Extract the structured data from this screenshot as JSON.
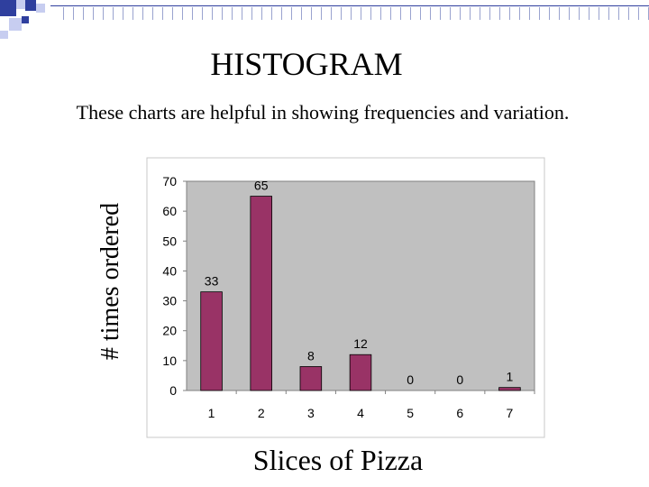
{
  "slide": {
    "title": "HISTOGRAM",
    "subtitle": "These charts are helpful in showing frequencies and variation."
  },
  "colors": {
    "bar_fill": "#993366",
    "plot_background": "#c0c0c0",
    "decor_blue": "#2f3f9e",
    "decor_light": "#c7cdf0"
  },
  "chart_data": {
    "type": "bar",
    "categories": [
      "1",
      "2",
      "3",
      "4",
      "5",
      "6",
      "7"
    ],
    "values": [
      33,
      65,
      8,
      12,
      0,
      0,
      1
    ],
    "data_labels": [
      "33",
      "65",
      "8",
      "12",
      "0",
      "0",
      "1"
    ],
    "xlabel": "Slices of Pizza",
    "ylabel": "# times ordered",
    "ylim": [
      0,
      70
    ],
    "yticks": [
      "0",
      "10",
      "20",
      "30",
      "40",
      "50",
      "60",
      "70"
    ],
    "grid": false,
    "legend": "none"
  }
}
